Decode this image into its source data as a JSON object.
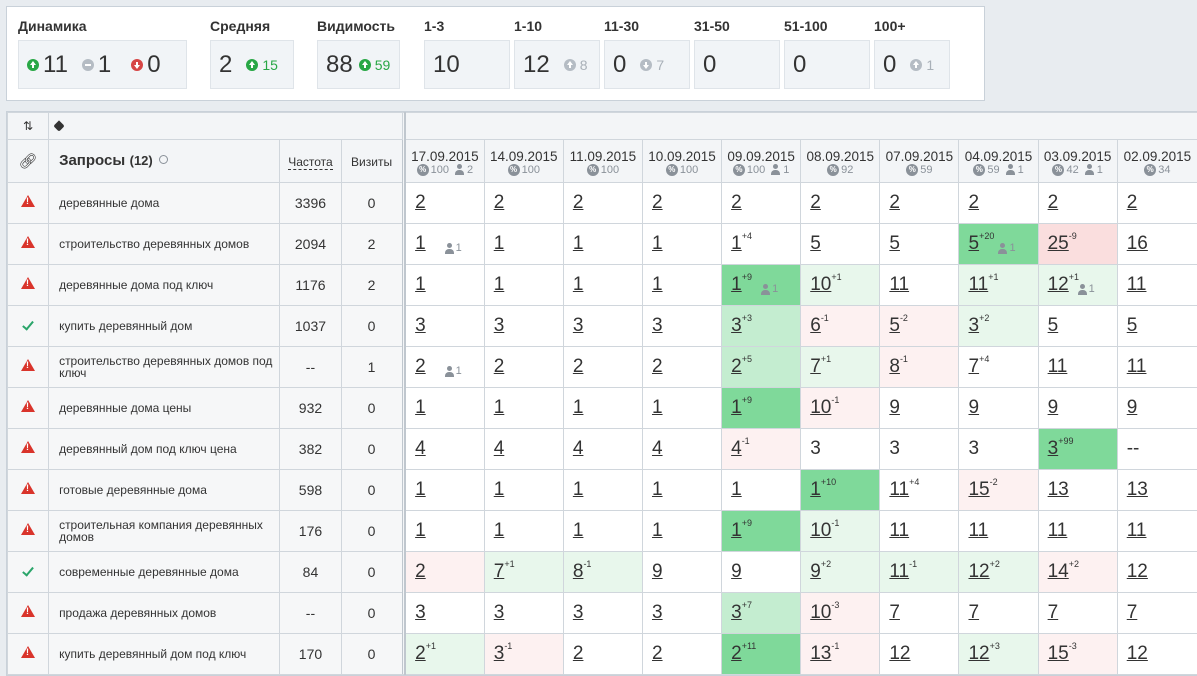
{
  "stats": {
    "dinamika": {
      "label": "Динамика",
      "up": "11",
      "eq": "1",
      "down": "0"
    },
    "srednyaya": {
      "label": "Средняя",
      "value": "2",
      "delta": "15"
    },
    "vidimost": {
      "label": "Видимость",
      "value": "88",
      "delta": "59"
    },
    "ranges": [
      {
        "label": "1-3",
        "value": "10",
        "delta": "",
        "dir": ""
      },
      {
        "label": "1-10",
        "value": "12",
        "delta": "8",
        "dir": "up"
      },
      {
        "label": "11-30",
        "value": "0",
        "delta": "7",
        "dir": "down"
      },
      {
        "label": "31-50",
        "value": "0",
        "delta": "",
        "dir": ""
      },
      {
        "label": "51-100",
        "value": "0",
        "delta": "",
        "dir": ""
      },
      {
        "label": "100+",
        "value": "0",
        "delta": "1",
        "dir": "up"
      }
    ]
  },
  "table": {
    "queries_label": "Запросы",
    "queries_count": "(12)",
    "freq_header": "Частота",
    "visits_header": "Визиты",
    "dates": [
      {
        "date": "17.09.2015",
        "pct": "100",
        "users": "2"
      },
      {
        "date": "14.09.2015",
        "pct": "100",
        "users": ""
      },
      {
        "date": "11.09.2015",
        "pct": "100",
        "users": ""
      },
      {
        "date": "10.09.2015",
        "pct": "100",
        "users": ""
      },
      {
        "date": "09.09.2015",
        "pct": "100",
        "users": "1"
      },
      {
        "date": "08.09.2015",
        "pct": "92",
        "users": ""
      },
      {
        "date": "07.09.2015",
        "pct": "59",
        "users": ""
      },
      {
        "date": "04.09.2015",
        "pct": "59",
        "users": "1"
      },
      {
        "date": "03.09.2015",
        "pct": "42",
        "users": "1"
      },
      {
        "date": "02.09.2015",
        "pct": "34",
        "users": ""
      }
    ],
    "rows": [
      {
        "status": "warn",
        "query": "деревянные дома",
        "freq": "3396",
        "visits": "0",
        "cells": [
          {
            "v": "2"
          },
          {
            "v": "2"
          },
          {
            "v": "2"
          },
          {
            "v": "2"
          },
          {
            "v": "2"
          },
          {
            "v": "2"
          },
          {
            "v": "2"
          },
          {
            "v": "2"
          },
          {
            "v": "2"
          },
          {
            "v": "2"
          }
        ]
      },
      {
        "status": "warn",
        "query": "строительство деревянных домов",
        "freq": "2094",
        "visits": "2",
        "cells": [
          {
            "v": "1",
            "u": "1"
          },
          {
            "v": "1"
          },
          {
            "v": "1"
          },
          {
            "v": "1"
          },
          {
            "v": "1",
            "d": "+4"
          },
          {
            "v": "5"
          },
          {
            "v": "5"
          },
          {
            "v": "5",
            "d": "+20",
            "u": "1",
            "c": "dg"
          },
          {
            "v": "25",
            "d": "-9",
            "c": "mr"
          },
          {
            "v": "16"
          }
        ]
      },
      {
        "status": "warn",
        "query": "деревянные дома под ключ",
        "freq": "1176",
        "visits": "2",
        "cells": [
          {
            "v": "1"
          },
          {
            "v": "1"
          },
          {
            "v": "1"
          },
          {
            "v": "1"
          },
          {
            "v": "1",
            "d": "+9",
            "u": "1",
            "c": "dg"
          },
          {
            "v": "10",
            "d": "+1",
            "c": "lg"
          },
          {
            "v": "11"
          },
          {
            "v": "11",
            "d": "+1",
            "c": "lg"
          },
          {
            "v": "12",
            "d": "+1",
            "u": "1",
            "c": "lg"
          },
          {
            "v": "11"
          }
        ]
      },
      {
        "status": "ok",
        "query": "купить деревянный дом",
        "freq": "1037",
        "visits": "0",
        "cells": [
          {
            "v": "3"
          },
          {
            "v": "3"
          },
          {
            "v": "3"
          },
          {
            "v": "3"
          },
          {
            "v": "3",
            "d": "+3",
            "c": "mg"
          },
          {
            "v": "6",
            "d": "-1",
            "c": "lr"
          },
          {
            "v": "5",
            "d": "-2",
            "c": "lr"
          },
          {
            "v": "3",
            "d": "+2",
            "c": "lg"
          },
          {
            "v": "5"
          },
          {
            "v": "5"
          }
        ]
      },
      {
        "status": "warn",
        "query": "строительство деревянных домов под ключ",
        "freq": "--",
        "visits": "1",
        "cells": [
          {
            "v": "2",
            "u": "1"
          },
          {
            "v": "2"
          },
          {
            "v": "2"
          },
          {
            "v": "2"
          },
          {
            "v": "2",
            "d": "+5",
            "c": "mg"
          },
          {
            "v": "7",
            "d": "+1",
            "c": "lg"
          },
          {
            "v": "8",
            "d": "-1",
            "c": "lr"
          },
          {
            "v": "7",
            "d": "+4",
            "c": "w"
          },
          {
            "v": "11"
          },
          {
            "v": "11"
          }
        ]
      },
      {
        "status": "warn",
        "query": "деревянные дома цены",
        "freq": "932",
        "visits": "0",
        "cells": [
          {
            "v": "1"
          },
          {
            "v": "1"
          },
          {
            "v": "1"
          },
          {
            "v": "1"
          },
          {
            "v": "1",
            "d": "+9",
            "c": "dg"
          },
          {
            "v": "10",
            "d": "-1",
            "c": "lr"
          },
          {
            "v": "9"
          },
          {
            "v": "9"
          },
          {
            "v": "9"
          },
          {
            "v": "9"
          }
        ]
      },
      {
        "status": "warn",
        "query": "деревянный дом под ключ цена",
        "freq": "382",
        "visits": "0",
        "cells": [
          {
            "v": "4"
          },
          {
            "v": "4"
          },
          {
            "v": "4"
          },
          {
            "v": "4"
          },
          {
            "v": "4",
            "d": "-1",
            "c": "lr"
          },
          {
            "v": "3",
            "n": true
          },
          {
            "v": "3",
            "n": true
          },
          {
            "v": "3",
            "n": true
          },
          {
            "v": "3",
            "d": "+99",
            "c": "dg"
          },
          {
            "v": "--",
            "n": true
          }
        ]
      },
      {
        "status": "warn",
        "query": "готовые деревянные дома",
        "freq": "598",
        "visits": "0",
        "cells": [
          {
            "v": "1"
          },
          {
            "v": "1"
          },
          {
            "v": "1"
          },
          {
            "v": "1"
          },
          {
            "v": "1"
          },
          {
            "v": "1",
            "d": "+10",
            "c": "dg"
          },
          {
            "v": "11",
            "d": "+4",
            "c": "w"
          },
          {
            "v": "15",
            "d": "-2",
            "c": "lr"
          },
          {
            "v": "13"
          },
          {
            "v": "13"
          }
        ]
      },
      {
        "status": "warn",
        "query": "строительная компания деревянных домов",
        "freq": "176",
        "visits": "0",
        "cells": [
          {
            "v": "1"
          },
          {
            "v": "1"
          },
          {
            "v": "1"
          },
          {
            "v": "1"
          },
          {
            "v": "1",
            "d": "+9",
            "c": "dg"
          },
          {
            "v": "10",
            "d": "-1",
            "c": "lg"
          },
          {
            "v": "11"
          },
          {
            "v": "11"
          },
          {
            "v": "11"
          },
          {
            "v": "11"
          }
        ]
      },
      {
        "status": "ok",
        "query": "современные деревянные дома",
        "freq": "84",
        "visits": "0",
        "cells": [
          {
            "v": "2",
            "c": "lr"
          },
          {
            "v": "7",
            "d": "+1",
            "c": "lg"
          },
          {
            "v": "8",
            "d": "-1",
            "c": "lg"
          },
          {
            "v": "9"
          },
          {
            "v": "9"
          },
          {
            "v": "9",
            "d": "+2",
            "c": "lg"
          },
          {
            "v": "11",
            "d": "-1",
            "c": "lg"
          },
          {
            "v": "12",
            "d": "+2",
            "c": "lg"
          },
          {
            "v": "14",
            "d": "+2",
            "c": "lr"
          },
          {
            "v": "12"
          }
        ]
      },
      {
        "status": "warn",
        "query": "продажа деревянных домов",
        "freq": "--",
        "visits": "0",
        "cells": [
          {
            "v": "3"
          },
          {
            "v": "3"
          },
          {
            "v": "3"
          },
          {
            "v": "3"
          },
          {
            "v": "3",
            "d": "+7",
            "c": "mg"
          },
          {
            "v": "10",
            "d": "-3",
            "c": "lr"
          },
          {
            "v": "7"
          },
          {
            "v": "7"
          },
          {
            "v": "7"
          },
          {
            "v": "7"
          }
        ]
      },
      {
        "status": "warn",
        "query": "купить деревянный дом под ключ",
        "freq": "170",
        "visits": "0",
        "cells": [
          {
            "v": "2",
            "d": "+1",
            "c": "lg"
          },
          {
            "v": "3",
            "d": "-1",
            "c": "lr"
          },
          {
            "v": "2"
          },
          {
            "v": "2"
          },
          {
            "v": "2",
            "d": "+11",
            "c": "dg"
          },
          {
            "v": "13",
            "d": "-1",
            "c": "lr"
          },
          {
            "v": "12"
          },
          {
            "v": "12",
            "d": "+3",
            "c": "lg"
          },
          {
            "v": "15",
            "d": "-3",
            "c": "lr"
          },
          {
            "v": "12"
          }
        ]
      }
    ]
  }
}
